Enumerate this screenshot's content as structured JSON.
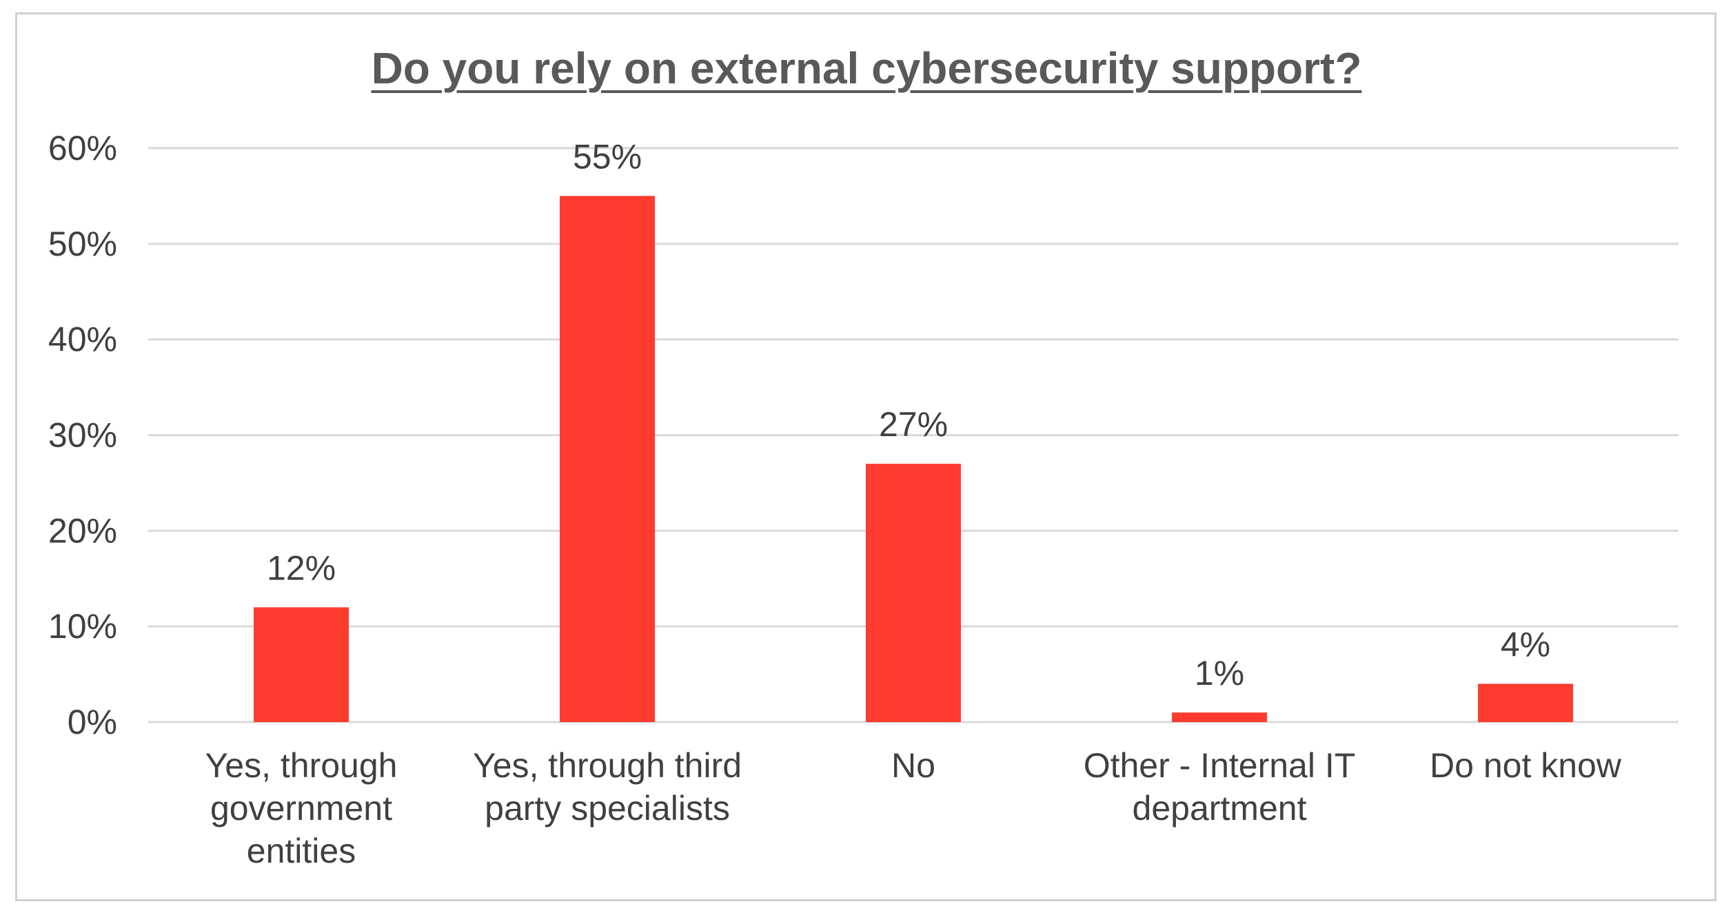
{
  "chart_data": {
    "type": "bar",
    "title": "Do you rely on external cybersecurity support?",
    "xlabel": "",
    "ylabel": "",
    "categories": [
      [
        "Yes, through",
        "government",
        "entities"
      ],
      [
        "Yes, through third",
        "party specialists"
      ],
      [
        "No"
      ],
      [
        "Other - Internal IT",
        "department"
      ],
      [
        "Do not know"
      ]
    ],
    "values": [
      12,
      55,
      27,
      1,
      4
    ],
    "data_labels": [
      "12%",
      "55%",
      "27%",
      "1%",
      "4%"
    ],
    "yticks": [
      "0%",
      "10%",
      "20%",
      "30%",
      "40%",
      "50%",
      "60%"
    ],
    "ylim": [
      0,
      60
    ],
    "grid": true,
    "legend": "none",
    "bar_color": "#ff3b30",
    "gridline_color": "#d9d9d9",
    "text_color": "#404040"
  }
}
